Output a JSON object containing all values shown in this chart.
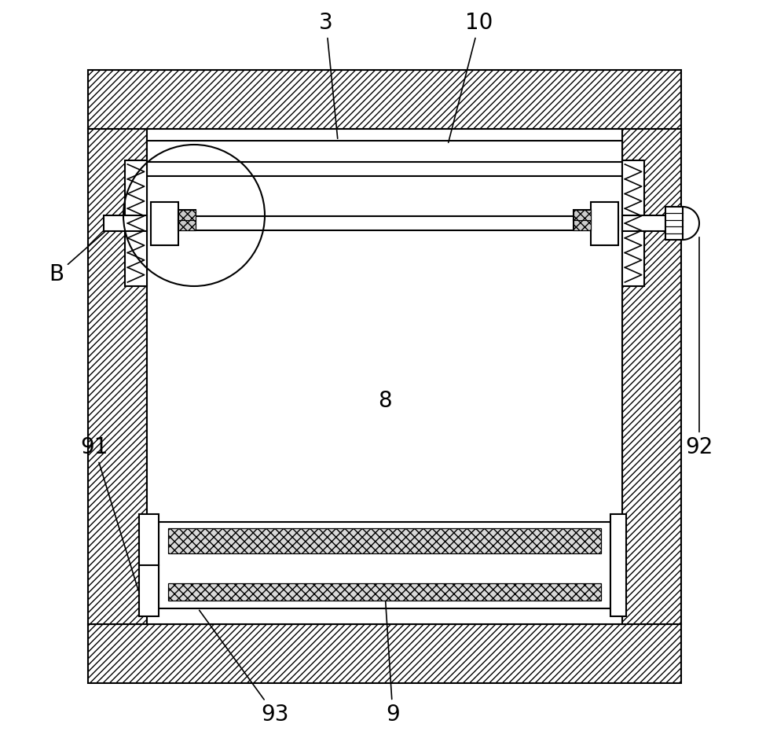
{
  "bg_color": "#ffffff",
  "line_color": "#000000",
  "figsize": [
    9.89,
    9.49
  ],
  "dpi": 100,
  "label_fontsize": 20
}
